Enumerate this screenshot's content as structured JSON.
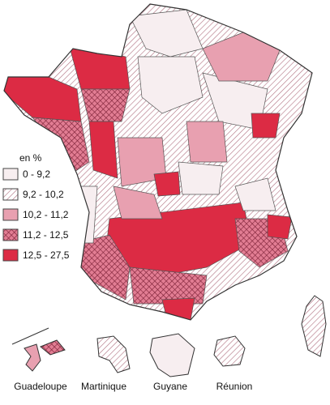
{
  "legend": {
    "title": "en %",
    "classes": [
      "0 - 9,2",
      "9,2 - 10,2",
      "10,2 - 11,2",
      "11,2 - 12,5",
      "12,5 - 27,5"
    ]
  },
  "overseas": [
    "Guadeloupe",
    "Martinique",
    "Guyane",
    "Réunion"
  ]
}
